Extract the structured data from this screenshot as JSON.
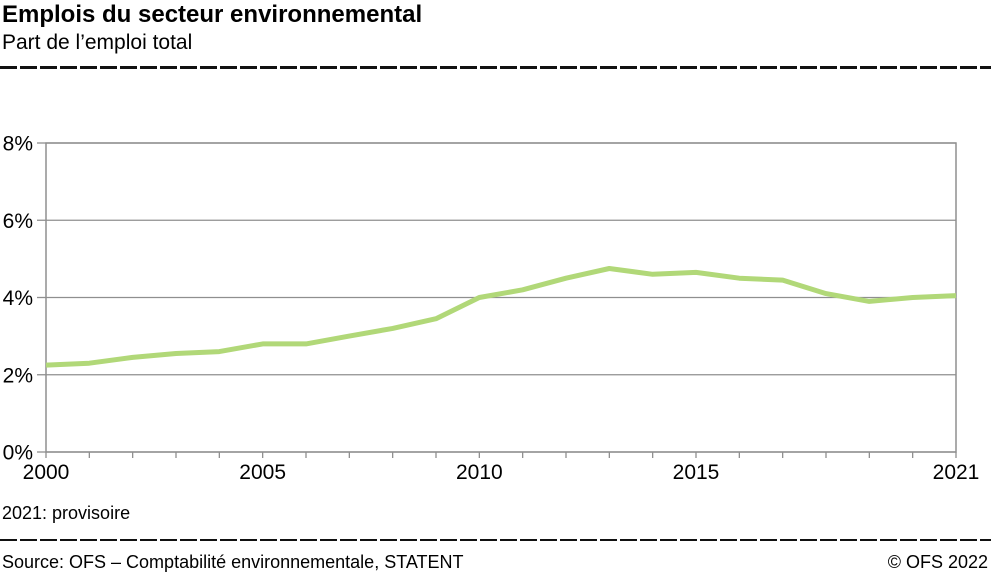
{
  "header": {
    "title": "Emplois du secteur environnemental",
    "subtitle": "Part de l’emploi total"
  },
  "note": "2021: provisoire",
  "footer": {
    "source": "Source: OFS – Comptabilité environnementale, STATENT",
    "copyright": "© OFS 2022"
  },
  "colors": {
    "line": "#b1d878",
    "grid": "#8f8f8f",
    "border": "#8f8f8f",
    "text": "#000000"
  },
  "chart_data": {
    "type": "line",
    "title": "Emplois du secteur environnemental",
    "subtitle": "Part de l’emploi total",
    "xlabel": "",
    "ylabel": "",
    "x": [
      2000,
      2001,
      2002,
      2003,
      2004,
      2005,
      2006,
      2007,
      2008,
      2009,
      2010,
      2011,
      2012,
      2013,
      2014,
      2015,
      2016,
      2017,
      2018,
      2019,
      2020,
      2021
    ],
    "series": [
      {
        "name": "Part de l’emploi total (%)",
        "values": [
          2.25,
          2.3,
          2.45,
          2.55,
          2.6,
          2.8,
          2.8,
          3.0,
          3.2,
          3.45,
          4.0,
          4.2,
          4.5,
          4.75,
          4.6,
          4.65,
          4.5,
          4.45,
          4.1,
          3.9,
          4.0,
          4.05
        ]
      }
    ],
    "ylim": [
      0,
      8
    ],
    "yticks": [
      0,
      2,
      4,
      6,
      8
    ],
    "ytick_labels": [
      "0%",
      "2%",
      "4%",
      "6%",
      "8%"
    ],
    "xticks_shown": [
      2000,
      2005,
      2010,
      2015,
      2021
    ],
    "xtick_labels_shown": [
      "2000",
      "2005",
      "2010",
      "2015",
      "2021"
    ],
    "grid": "horizontal",
    "legend": "none"
  }
}
